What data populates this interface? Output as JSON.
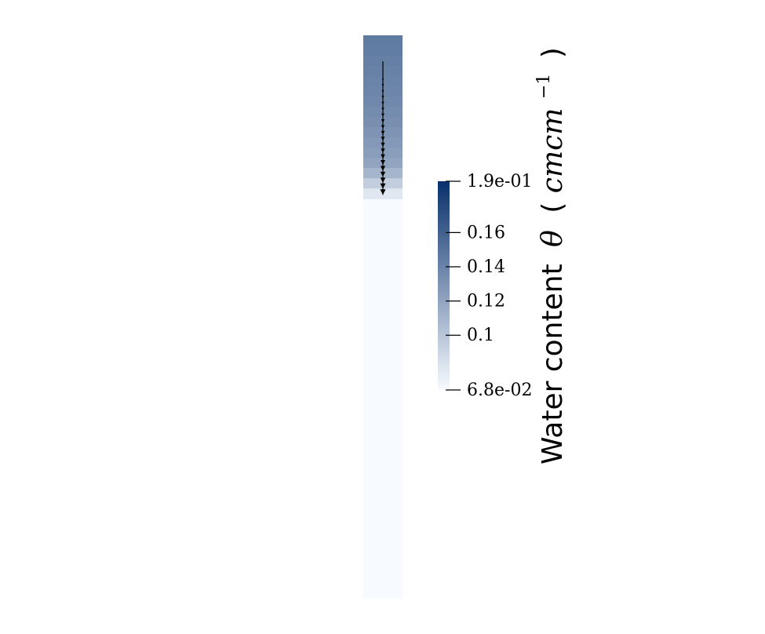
{
  "chart_data": {
    "type": "heatmap",
    "colorbar": {
      "title": "Water content",
      "symbol": "θ",
      "unit": "cmcm",
      "unit_exponent": "−1",
      "min": 0.068,
      "max": 0.19,
      "ticks": [
        {
          "value": 0.19,
          "label": "1.9e-01"
        },
        {
          "value": 0.16,
          "label": "0.16"
        },
        {
          "value": 0.14,
          "label": "0.14"
        },
        {
          "value": 0.12,
          "label": "0.12"
        },
        {
          "value": 0.1,
          "label": "0.1"
        },
        {
          "value": 0.068,
          "label": "6.8e-02"
        }
      ],
      "colors": {
        "low": "#f7fbff",
        "high": "#08306b"
      }
    },
    "column_profile": {
      "wet_layers": [
        {
          "value": 0.145
        },
        {
          "value": 0.144
        },
        {
          "value": 0.142
        },
        {
          "value": 0.141
        },
        {
          "value": 0.14
        },
        {
          "value": 0.139
        },
        {
          "value": 0.137
        },
        {
          "value": 0.135
        },
        {
          "value": 0.133
        },
        {
          "value": 0.13
        },
        {
          "value": 0.127
        },
        {
          "value": 0.124
        },
        {
          "value": 0.12
        },
        {
          "value": 0.11
        },
        {
          "value": 0.095
        },
        {
          "value": 0.08
        }
      ],
      "dry_value": 0.068,
      "wetting_front_fraction": 0.29
    },
    "arrow_colors": {
      "stroke": "#000000"
    }
  }
}
